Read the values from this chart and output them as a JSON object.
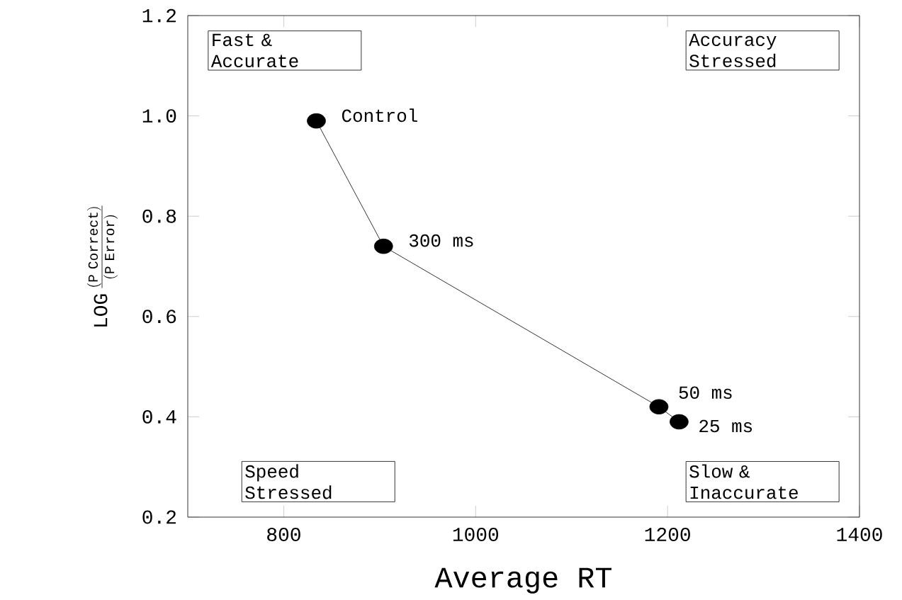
{
  "chart_data": {
    "type": "line",
    "xlabel": "Average RT",
    "ylabel": "\\mathrm{LOG}\\,\\frac{(\\mathrm{P\\ Correct})}{(\\mathrm{P\\ Error})}",
    "x": [
      834,
      904,
      1191,
      1212
    ],
    "values": [
      0.99,
      0.74,
      0.42,
      0.39
    ],
    "color": "#000000",
    "marker": "circle",
    "line_style": "solid",
    "xlim": [
      700,
      1400
    ],
    "ylim": [
      0.2,
      1.2
    ],
    "xticks": [
      {
        "value": 800,
        "label": "800"
      },
      {
        "value": 1000,
        "label": "1000"
      },
      {
        "value": 1200,
        "label": "1200"
      },
      {
        "value": 1400,
        "label": "1400"
      }
    ],
    "yticks": [
      {
        "value": 0.2,
        "label": "0.2"
      },
      {
        "value": 0.4,
        "label": "0.4"
      },
      {
        "value": 0.6,
        "label": "0.6"
      },
      {
        "value": 0.8,
        "label": "0.8"
      },
      {
        "value": 1.0,
        "label": "1.0"
      },
      {
        "value": 1.2,
        "label": "1.2"
      }
    ],
    "grid": false,
    "annotations": [
      {
        "text": "Control",
        "x": 834,
        "y": 0.99
      },
      {
        "text": "300 ms",
        "x": 904,
        "y": 0.74
      },
      {
        "text": "50 ms",
        "x": 1191,
        "y": 0.42
      },
      {
        "text": "25 ms",
        "x": 1212,
        "y": 0.39
      },
      "Fast & Accurate",
      "Accuracy Stressed",
      "Speed Stressed",
      "Slow & Inaccurate"
    ]
  }
}
